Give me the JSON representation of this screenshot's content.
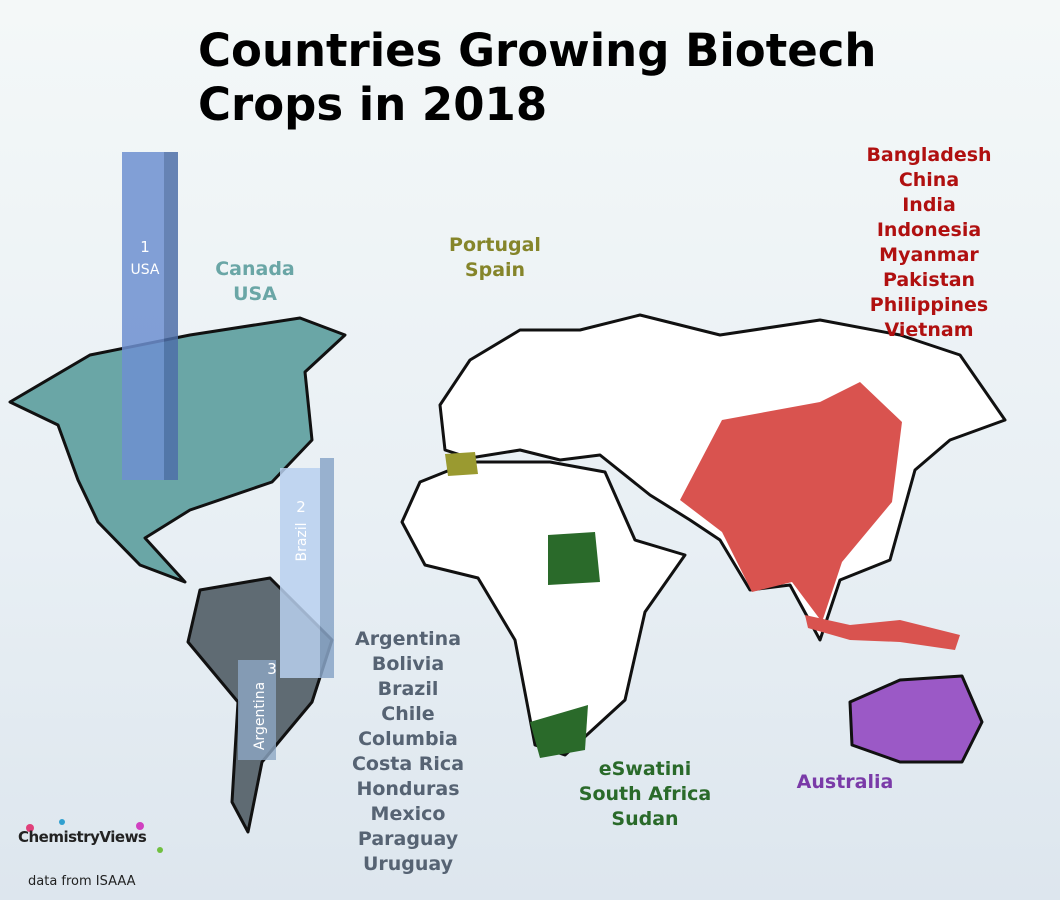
{
  "title": "Countries Growing Biotech Crops in 2018",
  "bars": [
    {
      "rank": "1",
      "country": "USA"
    },
    {
      "rank": "2",
      "country": "Brazil"
    },
    {
      "rank": "3",
      "country": "Argentina"
    }
  ],
  "groups": [
    {
      "countries": [
        "Canada",
        "USA"
      ],
      "color": "#6aa6a6"
    },
    {
      "countries": [
        "Portugal",
        "Spain"
      ],
      "color": "#85852a"
    },
    {
      "countries": [
        "Bangladesh",
        "China",
        "India",
        "Indonesia",
        "Myanmar",
        "Pakistan",
        "Philippines",
        "Vietnam"
      ],
      "color": "#b01010"
    },
    {
      "countries": [
        "Argentina",
        "Bolivia",
        "Brazil",
        "Chile",
        "Columbia",
        "Costa Rica",
        "Honduras",
        "Mexico",
        "Paraguay",
        "Uruguay"
      ],
      "color": "#566373"
    },
    {
      "countries": [
        "eSwatini",
        "South Africa",
        "Sudan"
      ],
      "color": "#2a6a2a"
    },
    {
      "countries": [
        "Australia"
      ],
      "color": "#7a3aa8"
    }
  ],
  "logo": "ChemistryViews",
  "source": "data from ISAAA"
}
